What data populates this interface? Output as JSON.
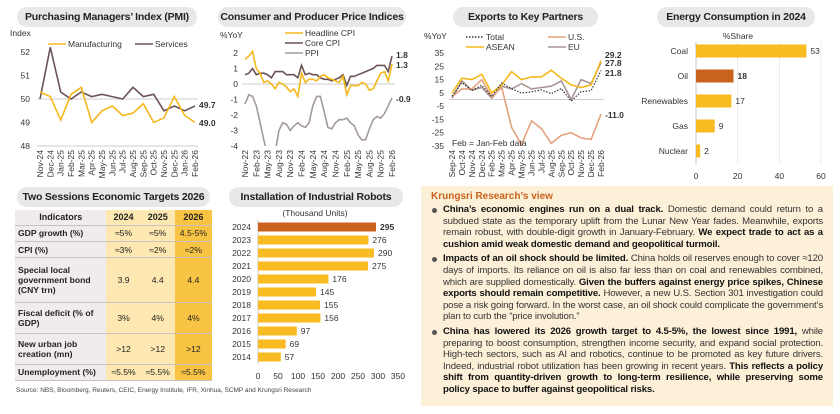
{
  "titles": {
    "pmi": "Purchasing Managers’ Index (PMI)",
    "cpi": "Consumer and Producer Price Indices",
    "exports": "Exports to Key Partners",
    "energy": "Energy Consumption in 2024",
    "targets": "Two Sessions Economic Targets 2026",
    "robots": "Installation of Industrial Robots"
  },
  "colors": {
    "yellow": "#f5b81c",
    "brown": "#6b5457",
    "gray": "#a59a9a",
    "salmon": "#e3a27c",
    "eu": "#a99694",
    "orange": "#c8621c",
    "pill": "#e9e7e7"
  },
  "chart_data": [
    {
      "id": "pmi",
      "type": "line",
      "ylabel": "Index",
      "ylim": [
        48,
        52
      ],
      "yticks": [
        48,
        49,
        50,
        51,
        52
      ],
      "categories": [
        "Nov-24",
        "Dec-24",
        "Jan-25",
        "Feb-25",
        "Mar-25",
        "Apr-25",
        "May-25",
        "Jun-25",
        "Jul-25",
        "Aug-25",
        "Sep-25",
        "Oct-25",
        "Nov-25",
        "Dec-25",
        "Jan-26",
        "Feb-26"
      ],
      "series": [
        {
          "name": "Manufacturing",
          "color": "#f5b81c",
          "values": [
            50.3,
            50.1,
            49.1,
            50.2,
            50.5,
            49.0,
            49.5,
            49.7,
            49.3,
            49.4,
            49.8,
            49.0,
            49.2,
            50.1,
            49.3,
            49.0
          ],
          "end_label": "49.0"
        },
        {
          "name": "Services",
          "color": "#6b5457",
          "values": [
            50.0,
            52.2,
            50.3,
            50.0,
            50.3,
            50.1,
            50.2,
            50.1,
            50.0,
            50.5,
            50.1,
            50.2,
            49.5,
            49.7,
            49.5,
            49.7
          ],
          "end_label": "49.7"
        }
      ]
    },
    {
      "id": "cpi",
      "type": "line",
      "ylabel": "%YoY",
      "ylim": [
        -4,
        2
      ],
      "yticks": [
        2,
        1,
        0,
        -1,
        -2,
        -3,
        -4
      ],
      "tick_labels": [
        "Nov-22",
        "Feb-23",
        "May-23",
        "Aug-23",
        "Nov-23",
        "Feb-24",
        "May-24",
        "Aug-24",
        "Nov-24",
        "Feb-25",
        "May-25",
        "Aug-25",
        "Nov-25",
        "Feb-26"
      ],
      "series": [
        {
          "name": "Headline CPI",
          "color": "#f5b81c",
          "values": [
            1.6,
            1.8,
            2.1,
            1.0,
            0.7,
            0.1,
            0.2,
            0.0,
            -0.3,
            0.1,
            0.0,
            -0.2,
            -0.5,
            -0.3,
            -0.8,
            0.7,
            0.1,
            0.3,
            0.3,
            0.2,
            0.5,
            0.6,
            0.4,
            0.3,
            0.2,
            0.1,
            0.5,
            -0.7,
            -0.1,
            -0.1,
            -0.1,
            0.1,
            0.0,
            -0.4,
            -0.3,
            0.2,
            0.7,
            0.8,
            0.2,
            1.3
          ],
          "end_label": "1.3"
        },
        {
          "name": "Core CPI",
          "color": "#6b5457",
          "values": [
            0.6,
            0.7,
            1.0,
            0.6,
            0.7,
            0.7,
            0.6,
            0.4,
            0.8,
            0.8,
            0.8,
            0.6,
            0.6,
            0.6,
            0.4,
            1.2,
            0.6,
            0.7,
            0.6,
            0.6,
            0.4,
            0.3,
            0.3,
            0.2,
            0.3,
            0.4,
            0.6,
            -0.1,
            0.5,
            0.5,
            0.6,
            0.7,
            0.8,
            0.9,
            1.0,
            1.2,
            1.2,
            1.2,
            0.8,
            1.8
          ],
          "end_label": "1.8"
        },
        {
          "name": "PPI",
          "color": "#a59a9a",
          "values": [
            -1.3,
            -0.7,
            -0.8,
            -1.4,
            -2.5,
            -3.6,
            -4.6,
            -5.4,
            -4.4,
            -3.0,
            -2.5,
            -2.6,
            -3.0,
            -2.7,
            -2.5,
            -2.7,
            -2.8,
            -2.5,
            -1.4,
            -0.8,
            -0.8,
            -1.8,
            -2.8,
            -2.9,
            -2.5,
            -2.3,
            -2.3,
            -2.2,
            -2.5,
            -2.7,
            -3.3,
            -3.6,
            -3.6,
            -2.9,
            -2.3,
            -2.1,
            -2.2,
            -1.9,
            -1.4,
            -0.9
          ],
          "end_label": "-0.9"
        }
      ]
    },
    {
      "id": "exports",
      "type": "line",
      "ylabel": "%YoY",
      "ylim": [
        -35,
        35
      ],
      "yticks": [
        35,
        25,
        15,
        5,
        -5,
        -15,
        -25,
        -35
      ],
      "annotation": "Feb = Jan-Feb data",
      "categories": [
        "Sep-24",
        "Oct-24",
        "Nov-24",
        "Dec-24",
        "Feb-25",
        "Mar-25",
        "Apr-25",
        "May-25",
        "Jun-25",
        "Jul-25",
        "Aug-25",
        "Sep-25",
        "Oct-25",
        "Nov-25",
        "Dec-25",
        "Feb-26"
      ],
      "series": [
        {
          "name": "Total",
          "color": "#333333",
          "dash": true,
          "values": [
            2.4,
            12.7,
            6.7,
            10.7,
            2.3,
            12.4,
            8.1,
            4.8,
            5.8,
            7.2,
            4.4,
            8.3,
            -1.1,
            5.9,
            6.6,
            21.8
          ],
          "end_label": "21.8"
        },
        {
          "name": "U.S.",
          "color": "#e3a27c",
          "values": [
            2,
            8,
            8,
            15,
            2,
            9,
            -21,
            -34,
            -16,
            -22,
            -33,
            -27,
            -25,
            -29,
            -30,
            -11.0
          ],
          "end_label": "-11.0"
        },
        {
          "name": "ASEAN",
          "color": "#f5b81c",
          "values": [
            5,
            16,
            15,
            19,
            5,
            11,
            21,
            15,
            17,
            17,
            22,
            16,
            11,
            9,
            11,
            29.2
          ],
          "end_label": "29.2"
        },
        {
          "name": "EU",
          "color": "#a99694",
          "values": [
            1,
            14,
            7,
            9,
            1,
            10,
            8,
            12,
            8,
            9,
            10,
            14,
            0,
            15,
            12,
            27.8
          ],
          "end_label": "27.8"
        }
      ]
    },
    {
      "id": "energy",
      "type": "bar",
      "orientation": "horizontal",
      "xlabel": "%Share",
      "xlim": [
        0,
        60
      ],
      "xticks": [
        0,
        20,
        40,
        60
      ],
      "categories": [
        "Coal",
        "Oil",
        "Renewables",
        "Gas",
        "Nuclear"
      ],
      "values": [
        53,
        18,
        17,
        9,
        2
      ],
      "highlight": "Oil"
    },
    {
      "id": "robots",
      "type": "bar",
      "orientation": "horizontal",
      "subtitle": "(Thousand Units)",
      "xlim": [
        0,
        350
      ],
      "xticks": [
        0,
        50,
        100,
        150,
        200,
        250,
        300,
        350
      ],
      "categories": [
        "2024",
        "2023",
        "2022",
        "2021",
        "2020",
        "2019",
        "2018",
        "2017",
        "2016",
        "2015",
        "2014"
      ],
      "values": [
        295,
        276,
        290,
        275,
        176,
        145,
        155,
        156,
        97,
        69,
        57
      ],
      "highlight": "2024"
    },
    {
      "id": "targets",
      "type": "table",
      "headers": [
        "Indicators",
        "2024",
        "2025",
        "2026"
      ],
      "rows": [
        [
          "GDP growth (%)",
          "≈5%",
          "≈5%",
          "4.5-5%"
        ],
        [
          "CPI (%)",
          "≈3%",
          "≈2%",
          "≈2%"
        ],
        [
          "Special local government bond (CNY trn)",
          "3.9",
          "4.4",
          "4.4"
        ],
        [
          "Fiscal deficit (% of GDP)",
          "3%",
          "4%",
          "4%"
        ],
        [
          "New urban job creation (mn)",
          ">12",
          ">12",
          ">12"
        ],
        [
          "Unemployment (%)",
          "≈5.5%",
          "≈5.5%",
          "≈5.5%"
        ]
      ]
    }
  ],
  "source": "Source: NBS, Bloomberg, Reuters, CEIC, Energy Institute, IFR, Xinhua, SCMP and Krungsri Research",
  "view": {
    "title": "Krungsri Research’s view",
    "bullets": [
      {
        "parts": [
          {
            "b": "China’s economic engines run on a dual track."
          },
          {
            "t": " Domestic demand could return to a subdued state as the temporary uplift from the Lunar New Year fades. Meanwhile, exports remain robust, with double-digit growth in January-February. "
          },
          {
            "b": "We expect trade to act as a cushion amid weak domestic demand and geopolitical turmoil."
          }
        ]
      },
      {
        "parts": [
          {
            "b": "Impacts of an oil shock should be limited."
          },
          {
            "t": " China holds oil reserves enough to cover ≈120 days of imports. Its reliance on oil is also far less than on coal and renewables combined, which are supplied domestically. "
          },
          {
            "b": "Given the buffers against energy price spikes, Chinese exports should remain competitive."
          },
          {
            "t": " However, a new U.S. Section 301 investigation could pose a risk going forward. In the worst case, an oil shock could complicate the government’s plan to curb the “price involution.”"
          }
        ]
      },
      {
        "parts": [
          {
            "b": "China has lowered its 2026 growth target to 4.5-5%, the lowest since 1991,"
          },
          {
            "t": " while preparing to boost consumption, strengthen income security, and expand social protection. High-tech sectors, such as AI and robotics, continue to be promoted as key future drivers. Indeed, industrial robot utilization has been growing in recent years. "
          },
          {
            "b": "This reflects a policy shift from quantity-driven growth to long-term resilience, while preserving some policy space to buffer against geopolitical risks."
          }
        ]
      }
    ]
  }
}
